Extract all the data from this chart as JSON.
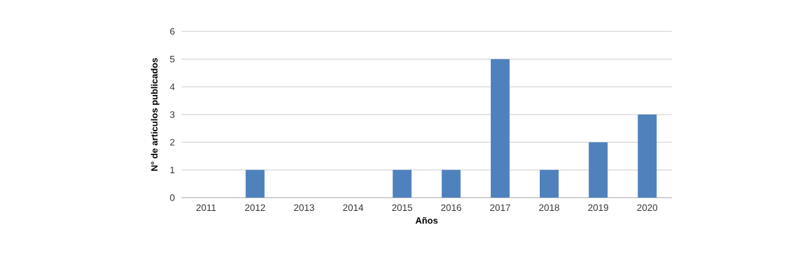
{
  "chart_data": {
    "type": "bar",
    "xlabel": "Años",
    "ylabel": "N° de articulos publicados",
    "categories": [
      "2011",
      "2012",
      "2013",
      "2014",
      "2015",
      "2016",
      "2017",
      "2018",
      "2019",
      "2020"
    ],
    "values": [
      0,
      1,
      0,
      0,
      1,
      1,
      5,
      1,
      2,
      3
    ],
    "color": "#4f81bd",
    "ylim": [
      0,
      6
    ],
    "yticks": [
      0,
      1,
      2,
      3,
      4,
      5,
      6
    ],
    "grid": "y"
  }
}
